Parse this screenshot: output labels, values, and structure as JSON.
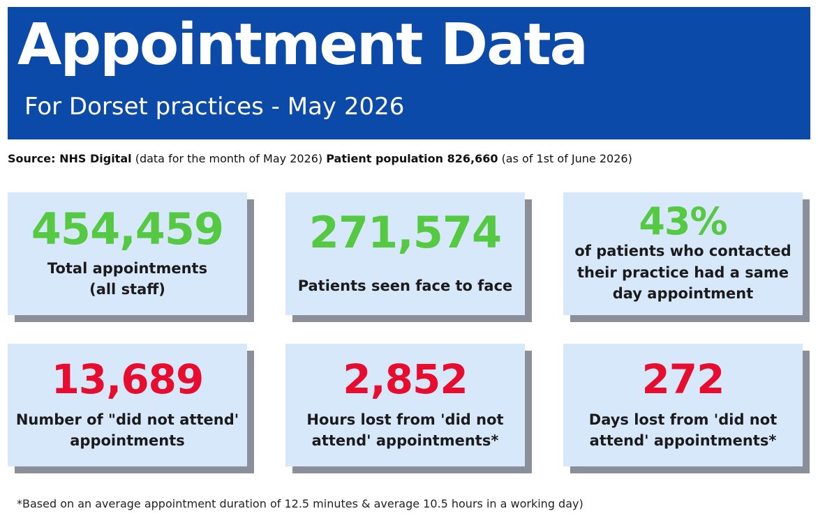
{
  "header": {
    "title": "Appointment Data",
    "subtitle": "For Dorset practices - May 2026"
  },
  "source": {
    "label": "Source: NHS Digital",
    "detail1": "(data for the month of May 2026)",
    "population": "Patient population 826,660",
    "detail2": "(as of 1st of June 2026)"
  },
  "stats": [
    {
      "value": "454,459",
      "label_lines": [
        "Total appointments",
        "(all staff)"
      ]
    },
    {
      "value": "271,574",
      "label_lines": [
        "Patients seen face to face"
      ]
    },
    {
      "value": "43%",
      "label_lines": [
        "of patients who contacted",
        "their practice had a same",
        "day appointment"
      ]
    },
    {
      "value": "13,689",
      "label_lines": [
        "Number of \"did not attend'",
        "appointments"
      ]
    },
    {
      "value": "2,852",
      "label_lines": [
        "Hours lost from 'did not",
        "attend' appointments*"
      ]
    },
    {
      "value": "272",
      "label_lines": [
        "Days lost from 'did not",
        "attend' appointments*"
      ]
    }
  ],
  "footnote": "*Based on an average appointment duration of 12.5 minutes & average 10.5 hours in a working day)",
  "colors": {
    "banner": "#0b4aa8",
    "card": "#d8e8fb",
    "shadow": "#8a8f99",
    "positive": "#56c943",
    "negative": "#e60d2e"
  }
}
